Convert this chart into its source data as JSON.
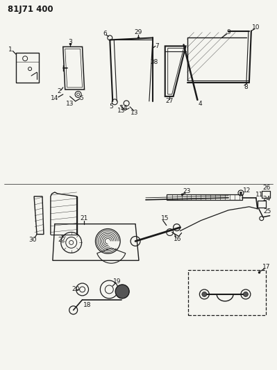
{
  "title": "81J71 400",
  "bg_color": "#f5f5f0",
  "line_color": "#1a1a1a",
  "figsize": [
    3.99,
    5.33
  ],
  "dpi": 100,
  "title_fontsize": 8.5,
  "label_fontsize": 6.5
}
